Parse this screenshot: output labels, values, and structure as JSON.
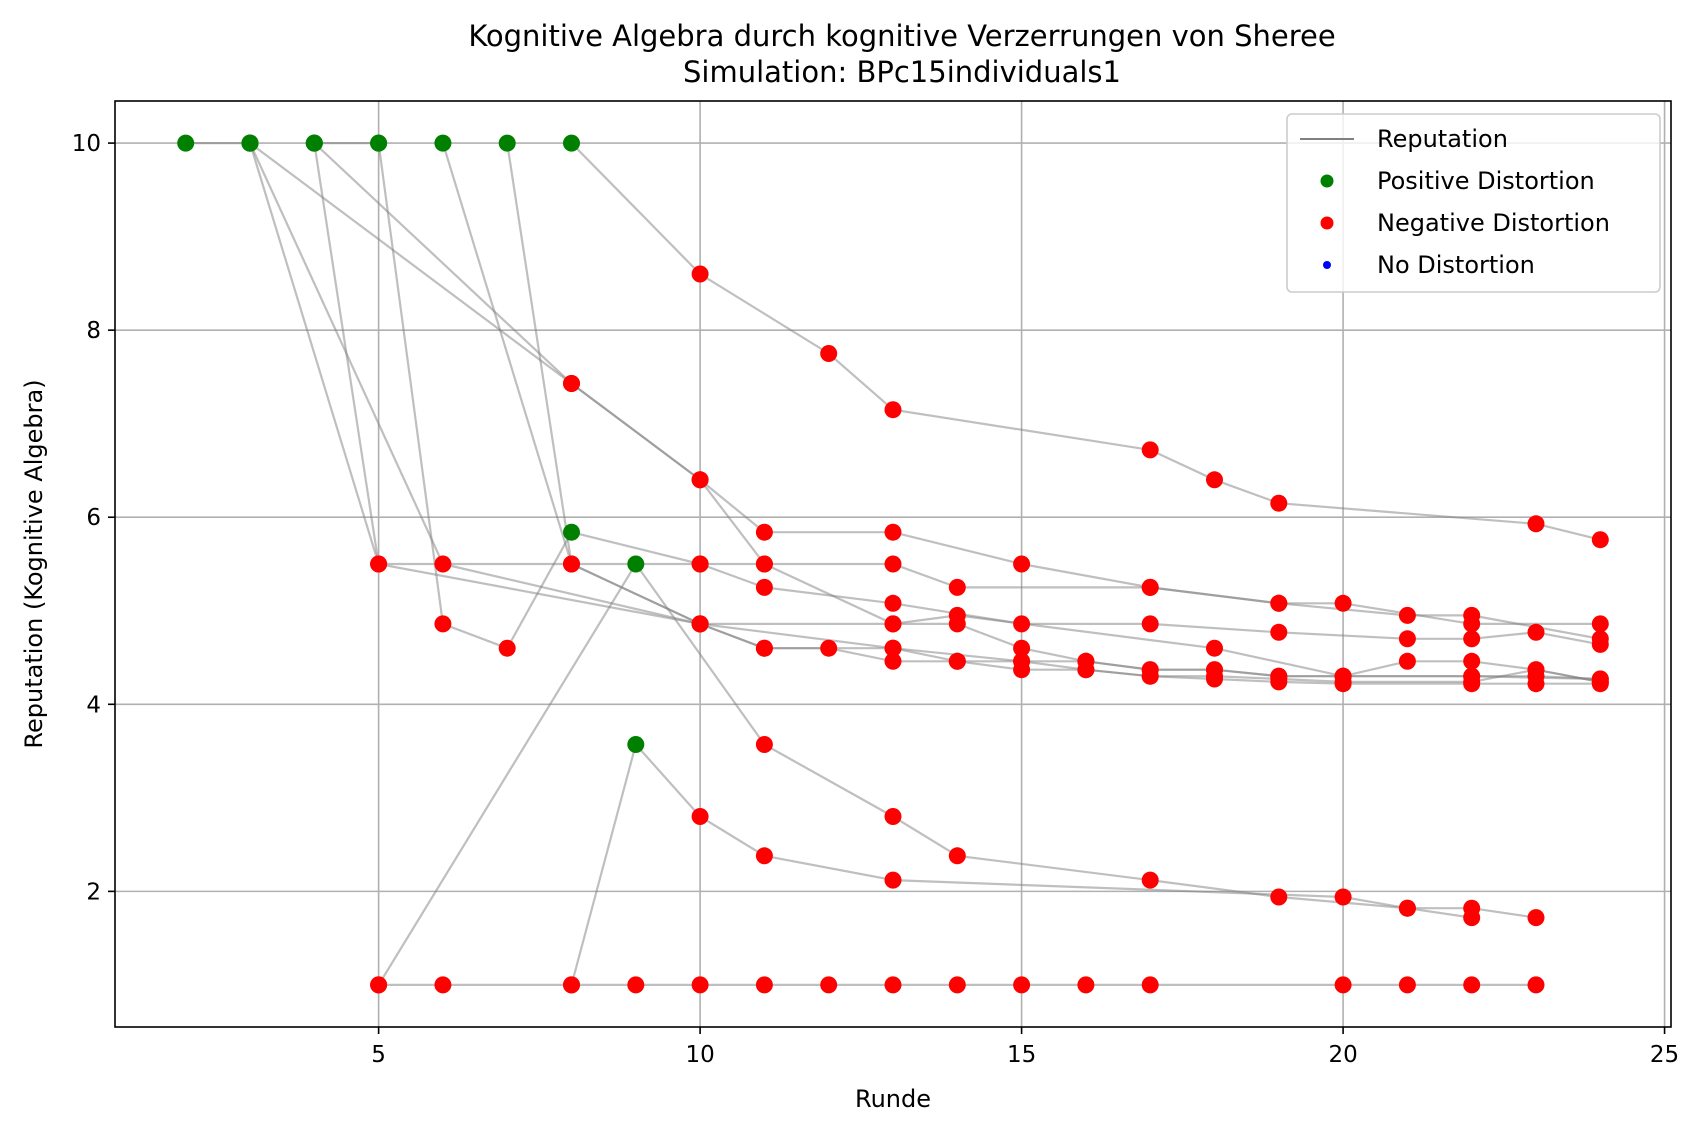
{
  "chart_data": {
    "type": "scatter",
    "title": "Kognitive Algebra durch kognitive Verzerrungen von Sheree",
    "subtitle": "Simulation: BPc15individuals1",
    "xlabel": "Runde",
    "ylabel": "Reputation (Kognitive Algebra)",
    "xlim": [
      0.9,
      25.1
    ],
    "ylim": [
      0.55,
      10.45
    ],
    "xticks": [
      5,
      10,
      15,
      20,
      25
    ],
    "yticks": [
      2,
      4,
      6,
      8,
      10
    ],
    "grid": true,
    "legend_position": "top-right",
    "legend": [
      {
        "label": "Reputation",
        "kind": "line",
        "color": "#808080"
      },
      {
        "label": "Positive Distortion",
        "kind": "marker",
        "color": "#008000"
      },
      {
        "label": "Negative Distortion",
        "kind": "marker",
        "color": "#ff0000"
      },
      {
        "label": "No Distortion",
        "kind": "marker-small",
        "color": "#0000ff"
      }
    ],
    "colors": {
      "positive": "#008000",
      "negative": "#ff0000",
      "none": "#0000ff",
      "line": "#808080"
    },
    "series": [
      {
        "points": [
          [
            8,
            10
          ],
          [
            10,
            8.6
          ],
          [
            12,
            7.75
          ],
          [
            13,
            7.15
          ],
          [
            17,
            6.72
          ],
          [
            18,
            6.4
          ],
          [
            19,
            6.15
          ],
          [
            23,
            5.93
          ],
          [
            24,
            5.76
          ]
        ],
        "distortion": [
          "positive",
          "negative",
          "negative",
          "negative",
          "negative",
          "negative",
          "negative",
          "negative",
          "negative"
        ]
      },
      {
        "points": [
          [
            4,
            10
          ],
          [
            8,
            7.43
          ],
          [
            10,
            6.4
          ],
          [
            11,
            5.84
          ],
          [
            13,
            5.84
          ],
          [
            15,
            5.5
          ],
          [
            17,
            5.25
          ],
          [
            19,
            5.08
          ],
          [
            20,
            5.08
          ],
          [
            22,
            4.86
          ],
          [
            24,
            4.86
          ]
        ],
        "distortion": [
          "positive",
          "negative",
          "negative",
          "negative",
          "negative",
          "negative",
          "negative",
          "negative",
          "negative",
          "negative",
          "negative"
        ]
      },
      {
        "points": [
          [
            3,
            10
          ],
          [
            8,
            7.43
          ],
          [
            10,
            6.4
          ],
          [
            11,
            5.5
          ],
          [
            13,
            5.5
          ],
          [
            14,
            5.25
          ],
          [
            17,
            5.25
          ],
          [
            19,
            5.08
          ],
          [
            21,
            4.95
          ],
          [
            22,
            4.95
          ],
          [
            24,
            4.7
          ]
        ],
        "distortion": [
          "positive",
          "negative",
          "negative",
          "negative",
          "negative",
          "negative",
          "negative",
          "negative",
          "negative",
          "negative",
          "negative"
        ]
      },
      {
        "points": [
          [
            4,
            10
          ],
          [
            5,
            5.5
          ],
          [
            10,
            4.86
          ],
          [
            11,
            4.6
          ],
          [
            12,
            4.6
          ],
          [
            13,
            4.46
          ],
          [
            14,
            4.46
          ],
          [
            15,
            4.37
          ],
          [
            16,
            4.37
          ],
          [
            17,
            4.3
          ],
          [
            18,
            4.27
          ],
          [
            19,
            4.24
          ],
          [
            20,
            4.22
          ],
          [
            22,
            4.22
          ],
          [
            23,
            4.22
          ],
          [
            24,
            4.22
          ]
        ],
        "distortion": [
          "positive",
          "negative",
          "negative",
          "negative",
          "negative",
          "negative",
          "negative",
          "negative",
          "negative",
          "negative",
          "negative",
          "negative",
          "negative",
          "negative",
          "negative",
          "negative"
        ]
      },
      {
        "points": [
          [
            3,
            10
          ],
          [
            5,
            5.5
          ],
          [
            10,
            5.5
          ],
          [
            11,
            5.25
          ],
          [
            13,
            5.08
          ],
          [
            15,
            4.86
          ],
          [
            17,
            4.86
          ],
          [
            19,
            4.77
          ],
          [
            21,
            4.7
          ],
          [
            22,
            4.7
          ],
          [
            23,
            4.77
          ],
          [
            24,
            4.64
          ]
        ],
        "distortion": [
          "positive",
          "negative",
          "negative",
          "negative",
          "negative",
          "negative",
          "negative",
          "negative",
          "negative",
          "negative",
          "negative",
          "negative"
        ]
      },
      {
        "points": [
          [
            3,
            10
          ],
          [
            6,
            5.5
          ],
          [
            10,
            4.86
          ],
          [
            11,
            4.6
          ],
          [
            13,
            4.6
          ],
          [
            15,
            4.46
          ],
          [
            16,
            4.46
          ],
          [
            17,
            4.37
          ],
          [
            18,
            4.37
          ],
          [
            19,
            4.3
          ],
          [
            20,
            4.3
          ],
          [
            22,
            4.3
          ],
          [
            23,
            4.3
          ],
          [
            24,
            4.27
          ]
        ],
        "distortion": [
          "positive",
          "negative",
          "negative",
          "negative",
          "negative",
          "negative",
          "negative",
          "negative",
          "negative",
          "negative",
          "negative",
          "negative",
          "negative",
          "negative"
        ]
      },
      {
        "points": [
          [
            6,
            10
          ],
          [
            8,
            5.5
          ],
          [
            10,
            4.86
          ],
          [
            13,
            4.6
          ],
          [
            14,
            4.46
          ],
          [
            15,
            4.46
          ],
          [
            16,
            4.37
          ],
          [
            17,
            4.3
          ],
          [
            18,
            4.3
          ],
          [
            19,
            4.27
          ],
          [
            20,
            4.24
          ],
          [
            22,
            4.24
          ],
          [
            23,
            4.37
          ],
          [
            24,
            4.24
          ]
        ],
        "distortion": [
          "positive",
          "negative",
          "negative",
          "negative",
          "negative",
          "negative",
          "negative",
          "negative",
          "negative",
          "negative",
          "negative",
          "negative",
          "negative",
          "negative"
        ]
      },
      {
        "points": [
          [
            5,
            10
          ],
          [
            6,
            4.86
          ],
          [
            7,
            4.6
          ],
          [
            8,
            5.84
          ],
          [
            10,
            5.5
          ],
          [
            11,
            5.5
          ],
          [
            13,
            4.86
          ],
          [
            14,
            4.86
          ],
          [
            15,
            4.6
          ],
          [
            16,
            4.46
          ],
          [
            17,
            4.37
          ],
          [
            18,
            4.37
          ],
          [
            19,
            4.3
          ],
          [
            20,
            4.3
          ],
          [
            21,
            4.46
          ],
          [
            22,
            4.46
          ],
          [
            23,
            4.37
          ],
          [
            24,
            4.24
          ]
        ],
        "distortion": [
          "positive",
          "negative",
          "negative",
          "positive",
          "negative",
          "negative",
          "negative",
          "negative",
          "negative",
          "negative",
          "negative",
          "negative",
          "negative",
          "negative",
          "negative",
          "negative",
          "negative",
          "negative"
        ]
      },
      {
        "points": [
          [
            7,
            10
          ],
          [
            8,
            5.5
          ],
          [
            10,
            4.86
          ],
          [
            13,
            4.86
          ],
          [
            14,
            4.95
          ],
          [
            18,
            4.6
          ],
          [
            20,
            4.3
          ],
          [
            22,
            4.3
          ],
          [
            24,
            4.27
          ]
        ],
        "distortion": [
          "positive",
          "negative",
          "negative",
          "negative",
          "negative",
          "negative",
          "negative",
          "negative",
          "negative"
        ]
      },
      {
        "points": [
          [
            5,
            1
          ],
          [
            9,
            5.5
          ],
          [
            11,
            3.57
          ],
          [
            13,
            2.8
          ],
          [
            14,
            2.38
          ],
          [
            17,
            2.12
          ],
          [
            19,
            1.94
          ],
          [
            21,
            1.82
          ],
          [
            22,
            1.82
          ],
          [
            23,
            1.72
          ]
        ],
        "distortion": [
          "negative",
          "positive",
          "negative",
          "negative",
          "negative",
          "negative",
          "negative",
          "negative",
          "negative",
          "negative"
        ]
      },
      {
        "points": [
          [
            8,
            1
          ],
          [
            9,
            3.57
          ],
          [
            10,
            2.8
          ],
          [
            11,
            2.38
          ],
          [
            13,
            2.12
          ],
          [
            20,
            1.94
          ],
          [
            21,
            1.82
          ],
          [
            22,
            1.72
          ]
        ],
        "distortion": [
          "negative",
          "positive",
          "negative",
          "negative",
          "negative",
          "negative",
          "negative",
          "negative"
        ]
      },
      {
        "points": [
          [
            5,
            1
          ],
          [
            6,
            1
          ],
          [
            8,
            1
          ],
          [
            9,
            1
          ],
          [
            10,
            1
          ],
          [
            11,
            1
          ],
          [
            12,
            1
          ],
          [
            13,
            1
          ],
          [
            14,
            1
          ],
          [
            15,
            1
          ],
          [
            16,
            1
          ],
          [
            17,
            1
          ],
          [
            20,
            1
          ],
          [
            21,
            1
          ],
          [
            22,
            1
          ],
          [
            23,
            1
          ]
        ],
        "distortion": [
          "negative",
          "negative",
          "negative",
          "negative",
          "negative",
          "negative",
          "negative",
          "negative",
          "negative",
          "negative",
          "negative",
          "negative",
          "negative",
          "negative",
          "negative",
          "negative"
        ]
      },
      {
        "points": [
          [
            2,
            10
          ],
          [
            3,
            10
          ]
        ],
        "distortion": [
          "positive",
          "positive"
        ]
      },
      {
        "points": [
          [
            4,
            10
          ],
          [
            5,
            10
          ]
        ],
        "distortion": [
          "positive",
          "positive"
        ]
      }
    ]
  }
}
